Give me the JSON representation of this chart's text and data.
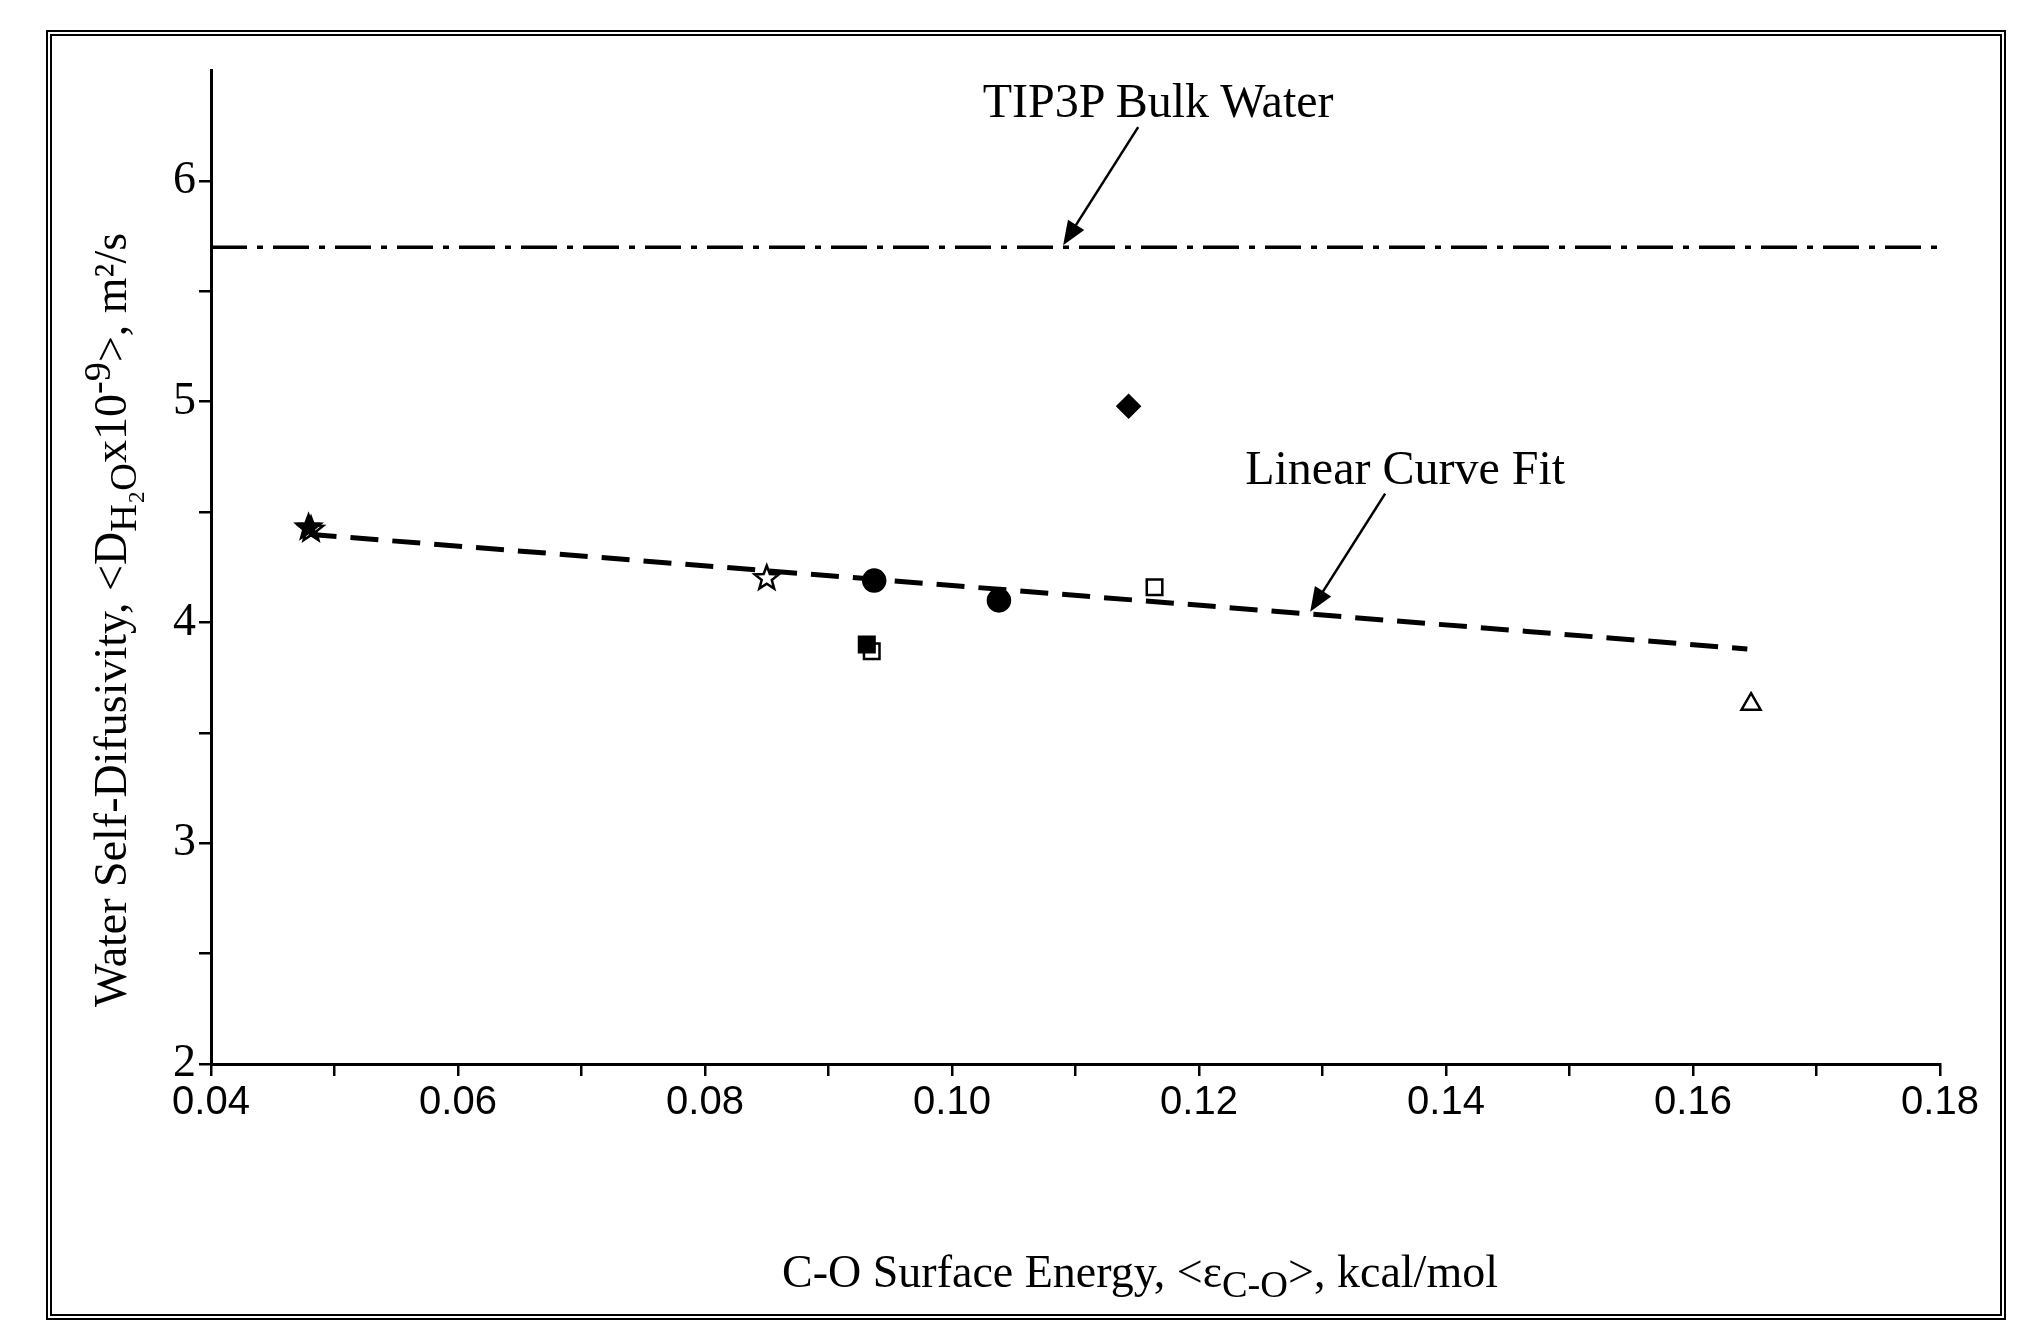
{
  "chart_data": {
    "type": "scatter",
    "xlabel": "C-O Surface Energy, <ε$_{C-O}$>, kcal/mol",
    "ylabel": "Water Self-Difusivity, <D$_{H₂O}$x10$^{-9}$>, m²/s",
    "xlim": [
      0.04,
      0.18
    ],
    "xticks": [
      0.04,
      {
        "value": 0.05,
        "label": null
      },
      0.06,
      {
        "value": 0.07,
        "label": null
      },
      0.08,
      {
        "value": 0.09,
        "label": null
      },
      {
        "value": 0.1,
        "label": "0.10"
      },
      {
        "value": 0.11,
        "label": null
      },
      0.12,
      {
        "value": 0.13,
        "label": null
      },
      0.14,
      {
        "value": 0.15,
        "label": null
      },
      0.16,
      {
        "value": 0.17,
        "label": null
      },
      0.18
    ],
    "ylim": [
      2,
      6.5
    ],
    "yticks": [
      2,
      {
        "value": 2.5,
        "label": null
      },
      3,
      {
        "value": 3.5,
        "label": null
      },
      4,
      {
        "value": 4.5,
        "label": null
      },
      5,
      {
        "value": 5.5,
        "label": null
      },
      6
    ],
    "grid": false,
    "legend": false,
    "series": [
      {
        "marker": "star",
        "color": "#000000",
        "x": [
          0.0479
        ],
        "values": [
          4.43
        ]
      },
      {
        "marker": "star",
        "color": "#ffffff",
        "x": [
          0.0481,
          0.085
        ],
        "values": [
          4.42,
          4.2
        ]
      },
      {
        "marker": "circle",
        "color": "#000000",
        "x": [
          0.0937,
          0.1038
        ],
        "values": [
          4.19,
          4.1
        ]
      },
      {
        "marker": "square",
        "color": "#000000",
        "x": [
          0.0931
        ],
        "values": [
          3.9
        ]
      },
      {
        "marker": "square",
        "color": "#ffffff",
        "x": [
          0.0935,
          0.1164
        ],
        "values": [
          3.87,
          4.16
        ]
      },
      {
        "marker": "diamond",
        "color": "#000000",
        "x": [
          0.1143
        ],
        "values": [
          4.98
        ]
      },
      {
        "marker": "triangle",
        "color": "#ffffff",
        "x": [
          0.1647
        ],
        "values": [
          3.63
        ]
      },
      {
        "type": "line",
        "marker": "none",
        "line_style": "dashed",
        "color": "#000000",
        "x": [
          0.0479,
          0.1644
        ],
        "values": [
          4.4,
          3.88
        ]
      }
    ],
    "ref_lines": [
      {
        "axis": "y",
        "value": 5.7,
        "color": "#000000",
        "line_style": "dashdot"
      }
    ],
    "annotations": [
      {
        "text": "TIP3P Bulk Water",
        "x": 0.109,
        "y": 5.7
      },
      {
        "text": "Linear Curve Fit",
        "x": 0.129,
        "y": 4.04
      }
    ]
  }
}
